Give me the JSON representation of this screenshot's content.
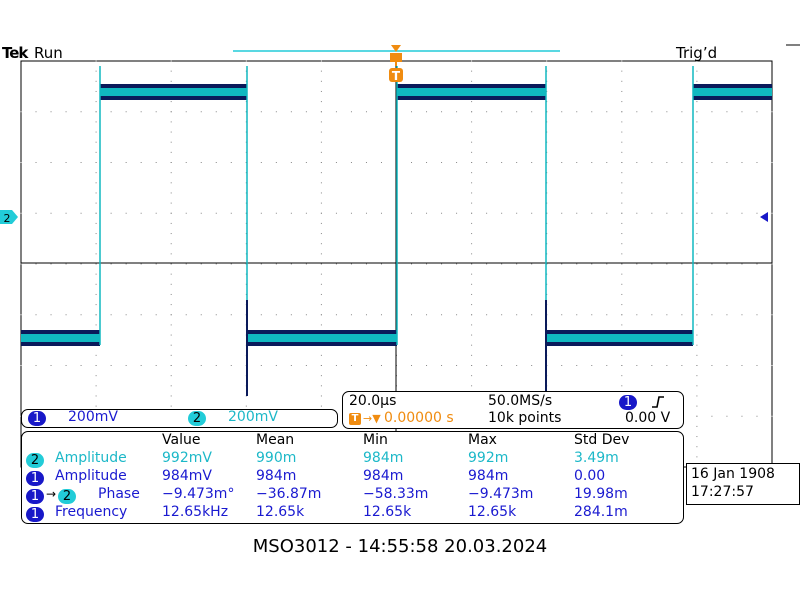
{
  "header": {
    "brand": "Tek",
    "run_state": "Run",
    "trigger_state": "Trig’d",
    "ch2_marker": "2",
    "trigger_marker": "T"
  },
  "channel_scales": [
    {
      "channel": "1",
      "scale": "200mV"
    },
    {
      "channel": "2",
      "scale": "200mV"
    }
  ],
  "acquisition": {
    "timebase": "20.0µs",
    "sample_rate": "50.0MS/s",
    "trigger_icon": "T",
    "trigger_position": "0.00000 s",
    "record_length": "10k points",
    "trigger_channel": "1",
    "trigger_slope_icon": "rising-edge-icon",
    "trigger_level": "0.00 V"
  },
  "measurements": {
    "headers": [
      "Value",
      "Mean",
      "Min",
      "Max",
      "Std Dev"
    ],
    "rows": [
      {
        "ch": "2",
        "ch2": "",
        "name": "Amplitude",
        "values": [
          "992mV",
          "990m",
          "984m",
          "992m",
          "3.49m"
        ],
        "color": "#1cb8c8"
      },
      {
        "ch": "1",
        "ch2": "",
        "name": "Amplitude",
        "values": [
          "984mV",
          "984m",
          "984m",
          "984m",
          "0.00"
        ],
        "color": "#1a1ad0"
      },
      {
        "ch": "1",
        "ch2": "2",
        "name": "Phase",
        "values": [
          "−9.473m°",
          "−36.87m",
          "−58.33m",
          "−9.473m",
          "19.98m"
        ],
        "color": "#1a1ad0"
      },
      {
        "ch": "1",
        "ch2": "",
        "name": "Frequency",
        "values": [
          "12.65kHz",
          "12.65k",
          "12.65k",
          "12.65k",
          "284.1m"
        ],
        "color": "#1a1ad0"
      }
    ]
  },
  "datetime": {
    "date": "16 Jan 1908",
    "time": "17:27:57"
  },
  "footer": "MSO3012 - 14:55:58   20.03.2024",
  "colors": {
    "ch1": "#1818c8",
    "ch2": "#22ccd8",
    "trace_dark": "#0a1a5a",
    "trace_light": "#10b8c0",
    "trigger": "#f08c10"
  }
}
